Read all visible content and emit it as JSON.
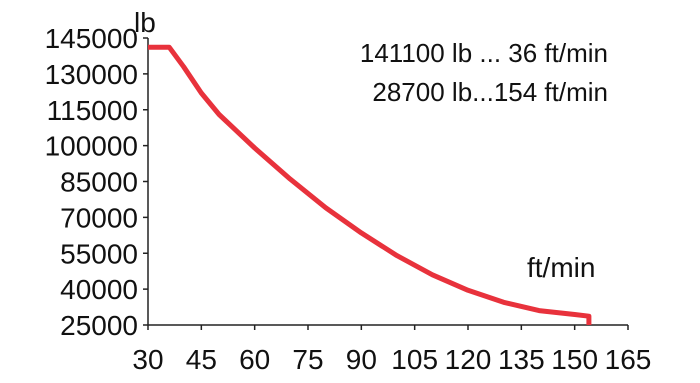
{
  "chart_data": {
    "type": "line",
    "ylabel": "lb",
    "xlabel": "ft/min",
    "xlim": [
      30,
      165
    ],
    "ylim": [
      25000,
      145000
    ],
    "x_ticks": [
      "30",
      "45",
      "60",
      "75",
      "90",
      "105",
      "120",
      "135",
      "150",
      "165"
    ],
    "y_ticks": [
      "145000",
      "130000",
      "115000",
      "100000",
      "85000",
      "70000",
      "55000",
      "40000",
      "25000"
    ],
    "annotations": [
      "141100 lb ... 36 ft/min",
      "28700 lb...154 ft/min"
    ],
    "grid": false,
    "legend": "none",
    "series": [
      {
        "color": "#e8323c",
        "x": [
          30,
          36,
          40,
          45,
          50,
          60,
          70,
          80,
          90,
          100,
          110,
          120,
          130,
          140,
          150,
          154,
          154
        ],
        "y": [
          141100,
          141100,
          133000,
          122000,
          113000,
          99000,
          86000,
          74000,
          63500,
          54000,
          46000,
          39500,
          34500,
          31000,
          29400,
          28700,
          25000
        ]
      }
    ]
  }
}
